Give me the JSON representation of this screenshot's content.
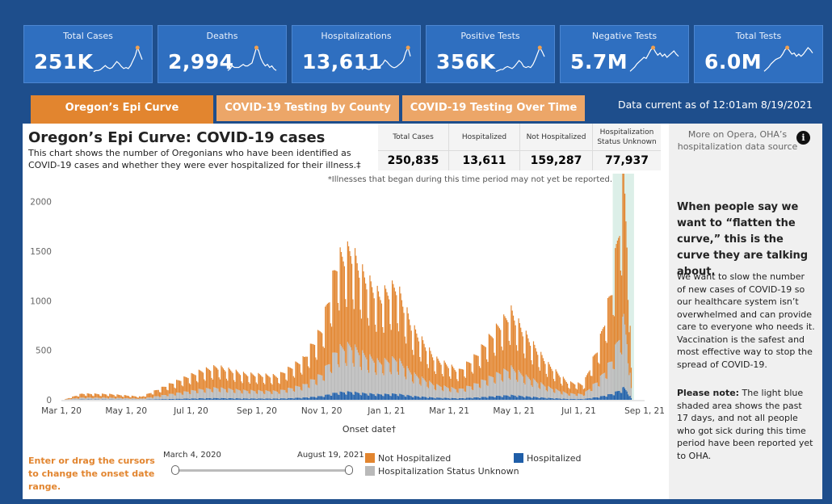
{
  "kpis": [
    {
      "label": "Total Cases",
      "value": "251K",
      "spark": [
        2,
        3,
        3,
        4,
        6,
        8,
        6,
        5,
        6,
        9,
        12,
        10,
        7,
        5,
        6,
        5,
        8,
        13,
        18,
        26,
        20,
        14
      ]
    },
    {
      "label": "Deaths",
      "value": "2,994",
      "spark": [
        2,
        3,
        5,
        4,
        4,
        4,
        5,
        6,
        5,
        5,
        6,
        7,
        12,
        17,
        15,
        10,
        7,
        5,
        6,
        4,
        5,
        3,
        2
      ]
    },
    {
      "label": "Hospitalizations",
      "value": "13,611",
      "spark": [
        4,
        6,
        5,
        4,
        5,
        6,
        7,
        6,
        8,
        10,
        14,
        12,
        9,
        7,
        6,
        7,
        9,
        11,
        14,
        22,
        27,
        18
      ]
    },
    {
      "label": "Positive Tests",
      "value": "356K",
      "spark": [
        2,
        3,
        4,
        4,
        6,
        7,
        6,
        5,
        7,
        10,
        13,
        11,
        7,
        6,
        7,
        6,
        9,
        14,
        20,
        26,
        22,
        17
      ]
    },
    {
      "label": "Negative Tests",
      "value": "5.7M",
      "spark": [
        2,
        4,
        6,
        9,
        11,
        13,
        15,
        14,
        18,
        22,
        24,
        20,
        17,
        19,
        16,
        18,
        15,
        17,
        19,
        21,
        18,
        16
      ]
    },
    {
      "label": "Total Tests",
      "value": "6.0M",
      "spark": [
        2,
        4,
        6,
        9,
        11,
        13,
        14,
        15,
        18,
        22,
        24,
        21,
        18,
        19,
        16,
        18,
        16,
        18,
        21,
        24,
        22,
        19
      ]
    }
  ],
  "tabs": [
    {
      "label": "Oregon’s Epi Curve",
      "active": true
    },
    {
      "label": "COVID-19 Testing by County",
      "active": false
    },
    {
      "label": "COVID-19 Testing Over Time",
      "active": false
    }
  ],
  "data_current": "Data current as of 12:01am 8/19/2021",
  "title": "Oregon’s Epi Curve: COVID-19 cases",
  "description": "This chart shows the number of Oregonians who have been identified as COVID-19 cases and whether they were ever hospitalized for their illness.‡",
  "summary": [
    {
      "header": "Total Cases",
      "value": "250,835",
      "color": "#8a8a8a"
    },
    {
      "header": "Hospitalized",
      "value": "13,611",
      "color": "#1f5ea8"
    },
    {
      "header": "Not Hospitalized",
      "value": "159,287",
      "color": "#e2852f"
    },
    {
      "header": "Hospitalization Status Unknown",
      "value": "77,937",
      "color": "#c6c6c6"
    }
  ],
  "opera_text": "More on Opera, OHA’s hospitalization data source",
  "info_icon": "info-icon",
  "side_heading": "When people say we want to “flatten the curve,” this is the curve they are talking about.",
  "side_body": "We want to slow the number of new cases of COVID-19 so our healthcare system isn’t overwhelmed and can provide care to everyone who needs it. Vaccination is the safest and most effective way to stop the spread of COVID-19.",
  "side_note_bold": "Please note:",
  "side_note": " The light blue shaded area shows the past 17 days, and not all people who got sick during this time period have been reported yet to OHA.",
  "cursor_hint": "Enter or drag the cursors to change the onset date range.",
  "slider": {
    "start_label": "March 4, 2020",
    "end_label": "August 19, 2021"
  },
  "legend": [
    {
      "label": "Not Hospitalized",
      "color": "#e2852f"
    },
    {
      "label": "Hospitalization Status Unknown",
      "color": "#b9b9b9"
    },
    {
      "label": "Hospitalized",
      "color": "#1f5ea8"
    }
  ],
  "chart_data": {
    "type": "bar",
    "stacked": true,
    "xlabel": "Onset date†",
    "ylabel": "",
    "ylim": [
      0,
      2200
    ],
    "yticks": [
      0,
      500,
      1000,
      1500,
      2000
    ],
    "xticks": [
      "Mar 1, 20",
      "May 1, 20",
      "Jul 1, 20",
      "Sep 1, 20",
      "Nov 1, 20",
      "Jan 1, 21",
      "Mar 1, 21",
      "May 1, 21",
      "Jul 1, 21",
      "Sep 1, 21"
    ],
    "x_range": [
      "2020-03-01",
      "2021-09-01"
    ],
    "annotation": "*Illnesses that began during this time period may not yet be reported.",
    "shaded_days": 17,
    "grid": false,
    "series": [
      {
        "name": "Hospitalized",
        "color": "#1f5ea8"
      },
      {
        "name": "Hospitalization Status Unknown",
        "color": "#b9b9b9"
      },
      {
        "name": "Not Hospitalized",
        "color": "#e2852f"
      }
    ],
    "total_daily_cases_keypoints": [
      [
        "2020-03-04",
        5
      ],
      [
        "2020-03-20",
        60
      ],
      [
        "2020-04-15",
        55
      ],
      [
        "2020-05-15",
        30
      ],
      [
        "2020-06-10",
        150
      ],
      [
        "2020-07-10",
        280
      ],
      [
        "2020-07-25",
        320
      ],
      [
        "2020-08-20",
        250
      ],
      [
        "2020-09-20",
        230
      ],
      [
        "2020-10-15",
        400
      ],
      [
        "2020-11-01",
        700
      ],
      [
        "2020-11-15",
        1350
      ],
      [
        "2020-11-28",
        1450
      ],
      [
        "2020-12-10",
        1200
      ],
      [
        "2020-12-25",
        1000
      ],
      [
        "2021-01-10",
        1100
      ],
      [
        "2021-01-25",
        700
      ],
      [
        "2021-02-15",
        400
      ],
      [
        "2021-03-10",
        280
      ],
      [
        "2021-03-25",
        420
      ],
      [
        "2021-04-15",
        700
      ],
      [
        "2021-04-28",
        850
      ],
      [
        "2021-05-10",
        650
      ],
      [
        "2021-06-01",
        350
      ],
      [
        "2021-06-20",
        170
      ],
      [
        "2021-07-05",
        150
      ],
      [
        "2021-07-20",
        550
      ],
      [
        "2021-08-01",
        1100
      ],
      [
        "2021-08-10",
        1900
      ],
      [
        "2021-08-12",
        2200
      ],
      [
        "2021-08-16",
        1400
      ],
      [
        "2021-08-19",
        300
      ]
    ],
    "hospitalized_share": 0.055,
    "unknown_share": 0.31
  }
}
